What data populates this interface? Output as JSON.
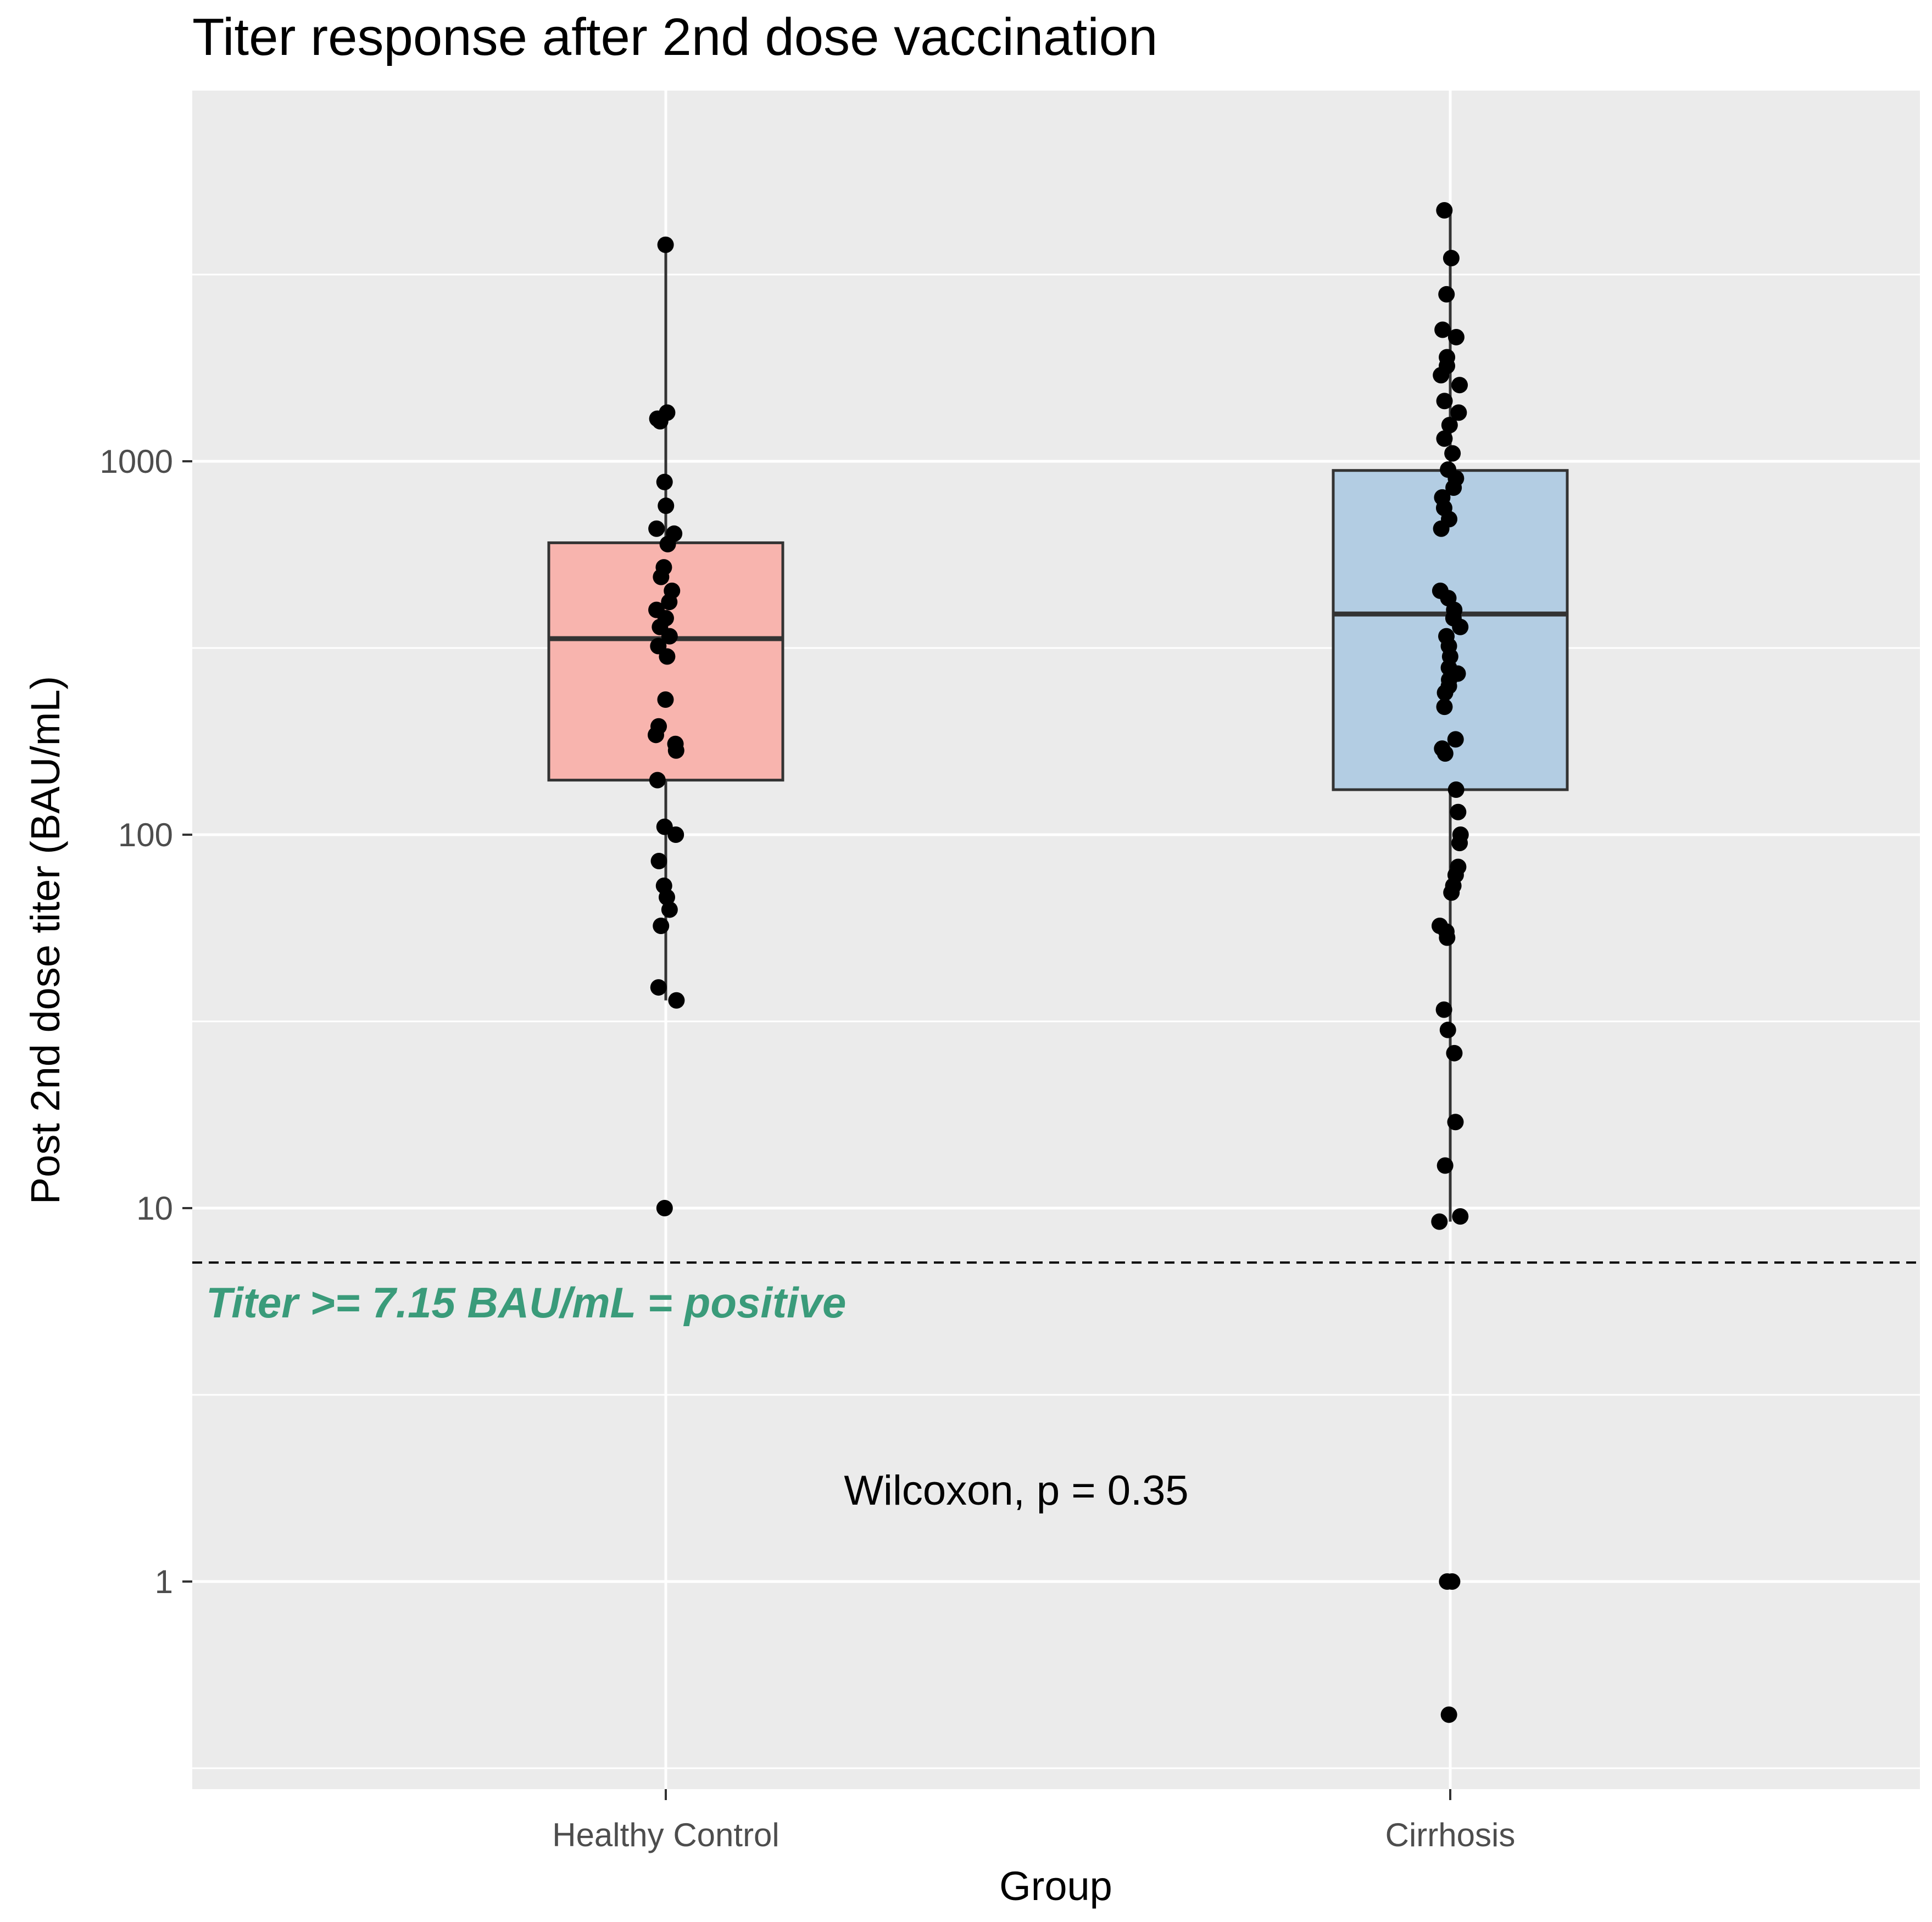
{
  "chart_data": {
    "type": "boxplot",
    "title": "Titer response after 2nd dose vaccination",
    "xlabel": "Group",
    "ylabel": "Post 2nd dose titer (BAU/mL)",
    "y_scale": "log10",
    "ylim": [
      0.3,
      8000
    ],
    "y_ticks": [
      {
        "value": 1,
        "label": "1"
      },
      {
        "value": 10,
        "label": "10"
      },
      {
        "value": 100,
        "label": "100"
      },
      {
        "value": 1000,
        "label": "1000"
      }
    ],
    "grid": true,
    "groups": [
      {
        "name": "Healthy Control",
        "fill": "#f8b4ae",
        "box": {
          "q1": 140,
          "median": 335,
          "q3": 605,
          "whisker_low": 36,
          "whisker_high": 3800
        },
        "points": [
          3800,
          1350,
          1300,
          1280,
          880,
          760,
          660,
          640,
          600,
          520,
          490,
          450,
          420,
          400,
          380,
          360,
          340,
          320,
          300,
          230,
          195,
          185,
          175,
          168,
          140,
          105,
          100,
          85,
          73,
          68,
          63,
          57,
          39,
          36,
          10
        ]
      },
      {
        "name": "Cirrhosis",
        "fill": "#b3cde3",
        "box": {
          "q1": 132,
          "median": 390,
          "q3": 945,
          "whisker_low": 9.2,
          "whisker_high": 4700
        },
        "points": [
          4700,
          3500,
          2800,
          2250,
          2150,
          1900,
          1800,
          1700,
          1600,
          1450,
          1350,
          1250,
          1150,
          1050,
          950,
          900,
          850,
          800,
          750,
          700,
          660,
          450,
          430,
          400,
          380,
          360,
          340,
          320,
          300,
          280,
          270,
          260,
          250,
          240,
          220,
          180,
          170,
          165,
          132,
          115,
          100,
          95,
          82,
          78,
          73,
          70,
          57,
          55,
          53,
          34,
          30,
          26,
          17,
          13,
          9.5,
          9.2,
          1,
          1,
          0.44
        ]
      }
    ],
    "threshold": {
      "value": 7.15,
      "label": "Titer >= 7.15 BAU/mL = positive"
    },
    "annotation": "Wilcoxon, p = 0.35"
  }
}
